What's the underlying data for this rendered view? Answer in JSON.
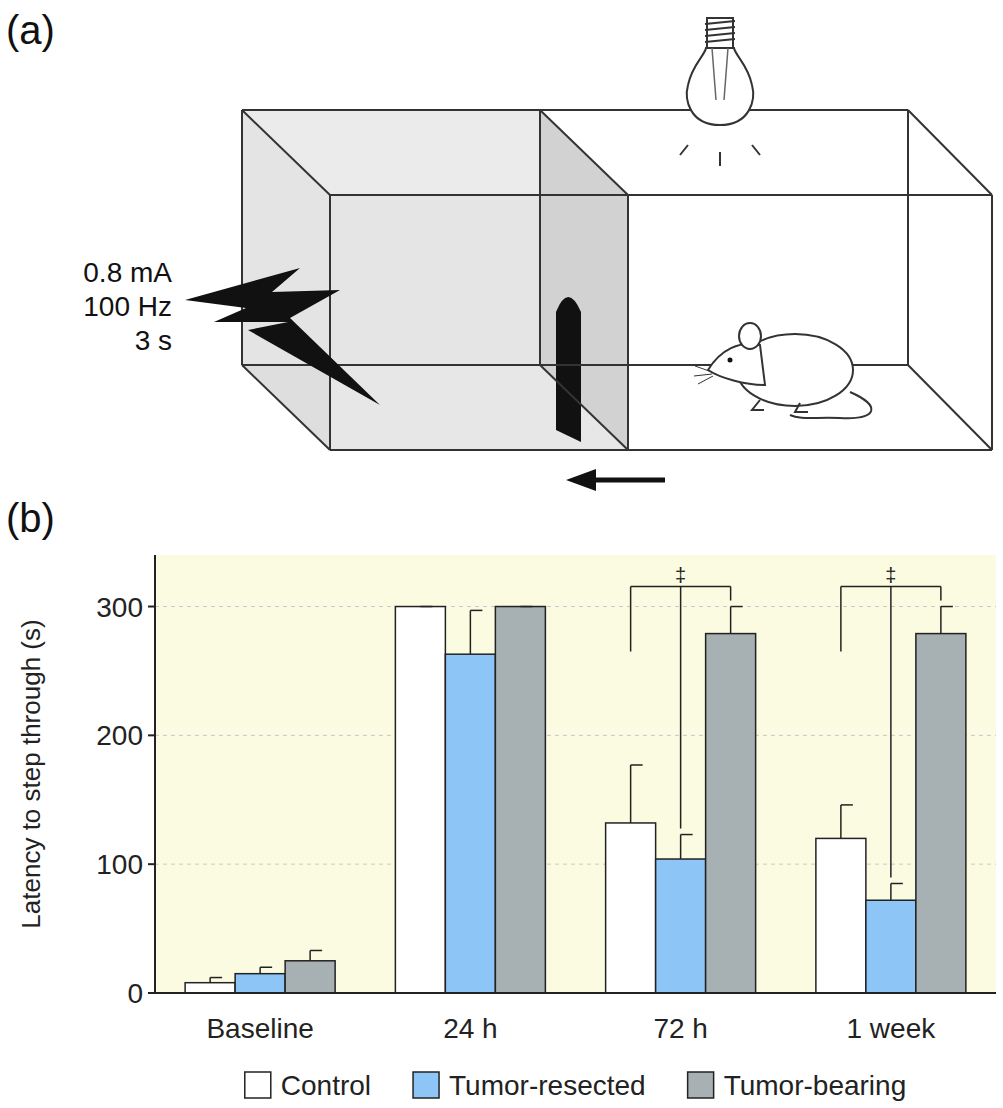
{
  "diagram": {
    "label": "(a)",
    "stimulus": [
      "0.8 mA",
      "100 Hz",
      "3 s"
    ]
  },
  "chart_data": {
    "type": "bar",
    "panel_label": "(b)",
    "y_label": "Latency to step through (s)",
    "categories": [
      "Baseline",
      "24 h",
      "72 h",
      "1 week"
    ],
    "series": [
      {
        "name": "Control",
        "color": "#ffffff",
        "values": [
          8,
          300,
          132,
          120
        ],
        "errors": [
          4,
          0,
          45,
          26
        ]
      },
      {
        "name": "Tumor-resected",
        "color": "#8ec5f7",
        "values": [
          15,
          263,
          104,
          72
        ],
        "errors": [
          5,
          34,
          19,
          13
        ]
      },
      {
        "name": "Tumor-bearing",
        "color": "#a7b0b3",
        "values": [
          25,
          300,
          279,
          279
        ],
        "errors": [
          8,
          0,
          21,
          21
        ]
      }
    ],
    "ylim": [
      0,
      340
    ],
    "yticks": [
      0,
      100,
      200,
      300
    ],
    "grid": true,
    "legend": "bottom",
    "annotations": [
      {
        "text": "‡",
        "category": "72 h"
      },
      {
        "text": "‡",
        "category": "1 week"
      }
    ]
  }
}
